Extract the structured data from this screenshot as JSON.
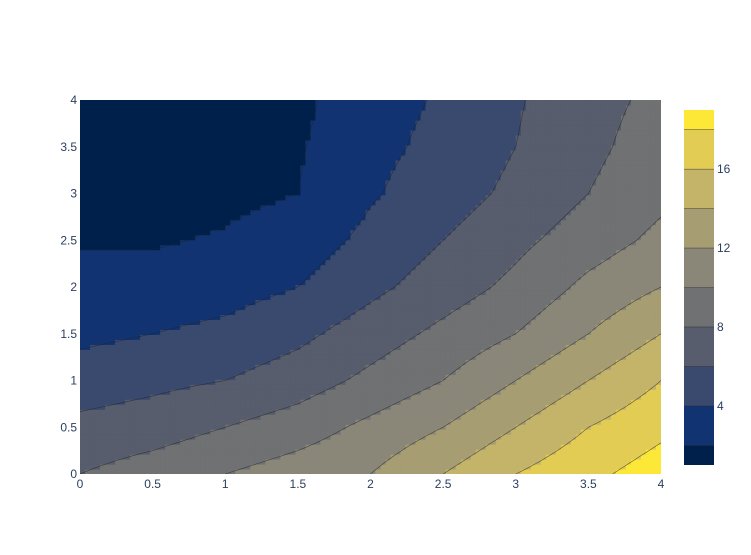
{
  "chart_data": {
    "type": "contour",
    "title": "",
    "xlabel": "",
    "ylabel": "",
    "x": [
      0,
      0.5,
      1,
      1.5,
      2,
      2.5,
      3,
      3.5,
      4
    ],
    "y": [
      0,
      0.5,
      1,
      1.5,
      2,
      2.5,
      3,
      3.5,
      4
    ],
    "xlim": [
      0,
      4
    ],
    "ylim": [
      0,
      4
    ],
    "x_ticks": [
      "0",
      "0.5",
      "1",
      "1.5",
      "2",
      "2.5",
      "3",
      "3.5",
      "4"
    ],
    "y_ticks": [
      "0",
      "0.5",
      "1",
      "1.5",
      "2",
      "2.5",
      "3",
      "3.5",
      "4"
    ],
    "z": [
      [
        8,
        9,
        10,
        11,
        12,
        14,
        16,
        17.5,
        19
      ],
      [
        6.5,
        7,
        8,
        9,
        10.5,
        12,
        14,
        16,
        17.5
      ],
      [
        5,
        5.5,
        6,
        7,
        8.5,
        10,
        12,
        14,
        16
      ],
      [
        3.5,
        4,
        4.5,
        5.5,
        7,
        8.5,
        10,
        12,
        14
      ],
      [
        2.8,
        2.8,
        3.2,
        4,
        5.5,
        7,
        8.5,
        10.5,
        12
      ],
      [
        1.8,
        1.8,
        2.2,
        3,
        4.5,
        6,
        7.5,
        9,
        10.5
      ],
      [
        1.5,
        1.5,
        1.5,
        2,
        3.8,
        5,
        6.5,
        8,
        9.5
      ],
      [
        1.5,
        1.5,
        1.5,
        1.8,
        3.5,
        4.5,
        6,
        7.5,
        9
      ],
      [
        1.5,
        1.5,
        1.5,
        1.5,
        3.3,
        4.2,
        5.8,
        7.3,
        8.5
      ]
    ],
    "contour_levels": [
      2,
      4,
      6,
      8,
      10,
      12,
      14,
      16,
      18
    ],
    "zlim": [
      1,
      19
    ],
    "colorscale": "Cividis",
    "colors": [
      "#00204c",
      "#123371",
      "#3a4a6e",
      "#575d6c",
      "#707173",
      "#8a8779",
      "#a79d72",
      "#c4b46a",
      "#e2cc54",
      "#fde838"
    ],
    "colorbar_ticks": [
      "4",
      "8",
      "12",
      "16"
    ],
    "colorbar_tick_values": [
      4,
      8,
      12,
      16
    ],
    "grid": false,
    "legend": "colorbar-right"
  }
}
